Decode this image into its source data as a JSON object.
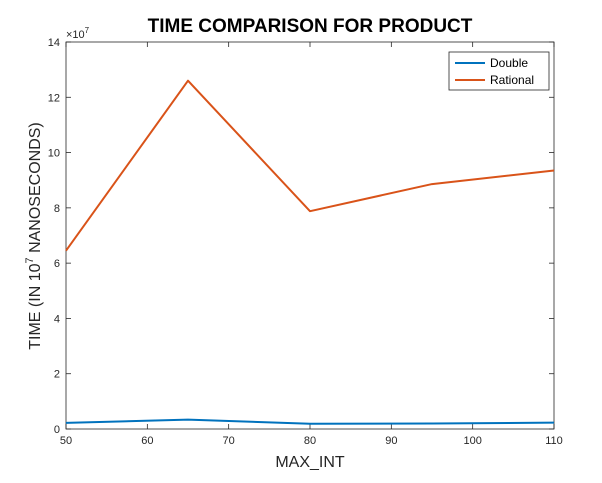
{
  "chart_data": {
    "type": "line",
    "title": "TIME COMPARISON FOR PRODUCT",
    "xlabel": "MAX_INT",
    "ylabel_prefix": "TIME (IN 10",
    "ylabel_exponent": "7",
    "ylabel_suffix": " NANOSECONDS)",
    "y_multiplier": "×10",
    "y_multiplier_exponent": "7",
    "xlim": [
      50,
      110
    ],
    "ylim": [
      0,
      14
    ],
    "xticks": [
      50,
      60,
      70,
      80,
      90,
      100,
      110
    ],
    "yticks": [
      0,
      2,
      4,
      6,
      8,
      10,
      12,
      14
    ],
    "grid": false,
    "legend_position": "top-right",
    "x": [
      50,
      65,
      80,
      95,
      110
    ],
    "series": [
      {
        "name": "Double",
        "color": "#0072BD",
        "values": [
          0.22,
          0.34,
          0.19,
          0.2,
          0.23
        ]
      },
      {
        "name": "Rational",
        "color": "#D95319",
        "values": [
          6.45,
          12.6,
          7.88,
          8.86,
          9.35
        ]
      }
    ]
  }
}
